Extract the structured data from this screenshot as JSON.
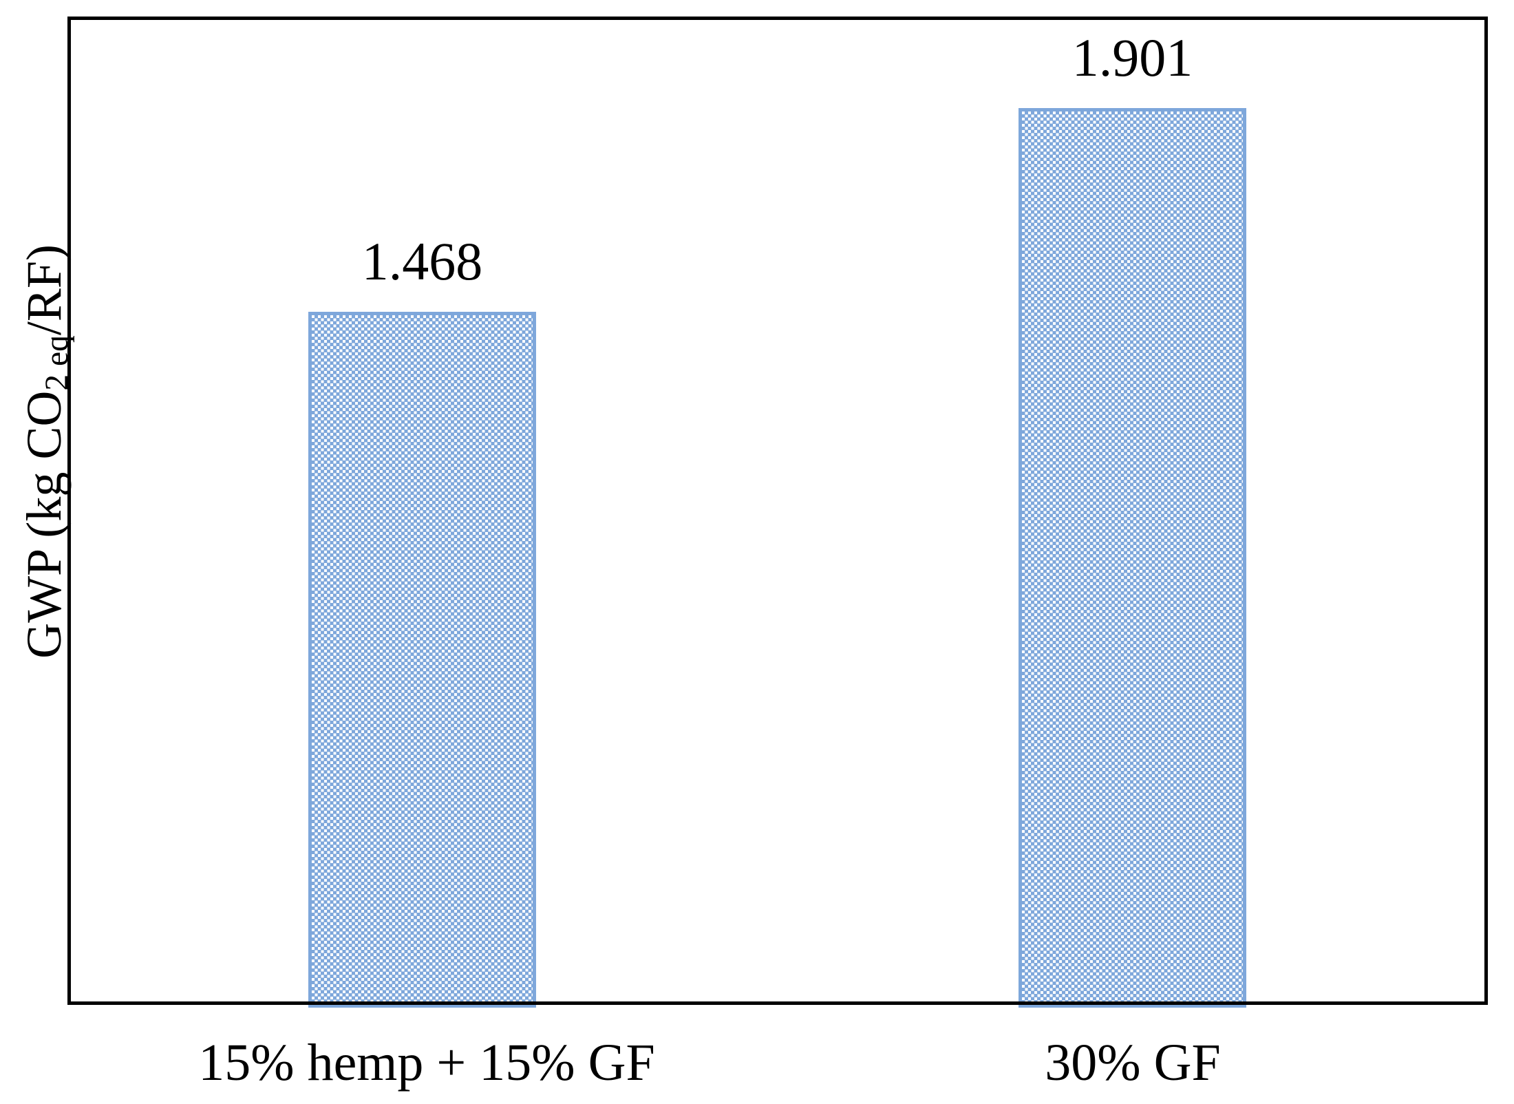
{
  "figure": {
    "ylabel_pre": "GWP (kg CO",
    "ylabel_sub": "2 eq",
    "ylabel_post": "/RF)"
  },
  "chart_data": {
    "type": "bar",
    "categories": [
      "15% hemp + 15% GF",
      "30% GF"
    ],
    "values": [
      1.468,
      1.901
    ],
    "value_labels": [
      "1.468",
      "1.901"
    ],
    "title": "",
    "xlabel": "",
    "ylabel": "GWP (kg CO2 eq/RF)",
    "ylim": [
      0,
      2.1
    ],
    "grid": false,
    "legend": false,
    "bar_color": "#7EA7DB",
    "bar_pattern": "white-checkerboard-on-blue",
    "frame_color": "#000000",
    "background_color": "#FFFFFF"
  }
}
